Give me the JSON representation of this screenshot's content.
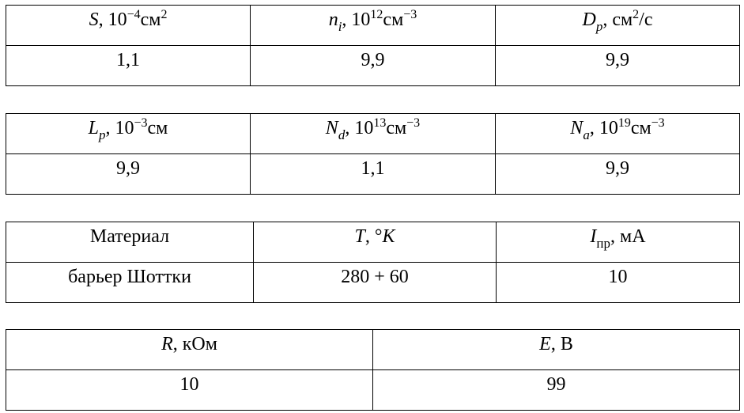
{
  "tables": [
    {
      "header": [
        [
          {
            "text": "S",
            "kind": "italic"
          },
          {
            "text": ", 10"
          },
          {
            "text": "−4",
            "kind": "sup"
          },
          {
            "text": "см"
          },
          {
            "text": "2",
            "kind": "sup"
          }
        ],
        [
          {
            "text": "n",
            "kind": "italic"
          },
          {
            "text": "i",
            "kind": "sub-italic"
          },
          {
            "text": ", 10"
          },
          {
            "text": "12",
            "kind": "sup"
          },
          {
            "text": "см"
          },
          {
            "text": "−3",
            "kind": "sup"
          }
        ],
        [
          {
            "text": "D",
            "kind": "italic"
          },
          {
            "text": "p",
            "kind": "sub-italic"
          },
          {
            "text": ", см"
          },
          {
            "text": "2",
            "kind": "sup"
          },
          {
            "text": "/с"
          }
        ]
      ],
      "rows": [
        [
          "1,1",
          "9,9",
          "9,9"
        ]
      ]
    },
    {
      "header": [
        [
          {
            "text": "L",
            "kind": "italic"
          },
          {
            "text": "p",
            "kind": "sub-italic"
          },
          {
            "text": ", 10"
          },
          {
            "text": "−3",
            "kind": "sup"
          },
          {
            "text": "см"
          }
        ],
        [
          {
            "text": "N",
            "kind": "italic"
          },
          {
            "text": "d",
            "kind": "sub-italic"
          },
          {
            "text": ", 10"
          },
          {
            "text": "13",
            "kind": "sup"
          },
          {
            "text": "см"
          },
          {
            "text": "−3",
            "kind": "sup"
          }
        ],
        [
          {
            "text": "N",
            "kind": "italic"
          },
          {
            "text": "a",
            "kind": "sub-italic"
          },
          {
            "text": ", 10"
          },
          {
            "text": "19",
            "kind": "sup"
          },
          {
            "text": "см"
          },
          {
            "text": "−3",
            "kind": "sup"
          }
        ]
      ],
      "rows": [
        [
          "9,9",
          "1,1",
          "9,9"
        ]
      ]
    },
    {
      "header": [
        [
          {
            "text": "Материал"
          }
        ],
        [
          {
            "text": "T",
            "kind": "italic"
          },
          {
            "text": ", °"
          },
          {
            "text": "K",
            "kind": "italic"
          }
        ],
        [
          {
            "text": "I",
            "kind": "italic"
          },
          {
            "text": "пр",
            "kind": "sub"
          },
          {
            "text": ", мА"
          }
        ]
      ],
      "rows": [
        [
          "барьер Шоттки",
          "280 + 60",
          "10"
        ]
      ]
    },
    {
      "header": [
        [
          {
            "text": "R",
            "kind": "italic"
          },
          {
            "text": ", кОм"
          }
        ],
        [
          {
            "text": "E",
            "kind": "italic"
          },
          {
            "text": ", В"
          }
        ]
      ],
      "rows": [
        [
          "10",
          "99"
        ]
      ]
    }
  ]
}
